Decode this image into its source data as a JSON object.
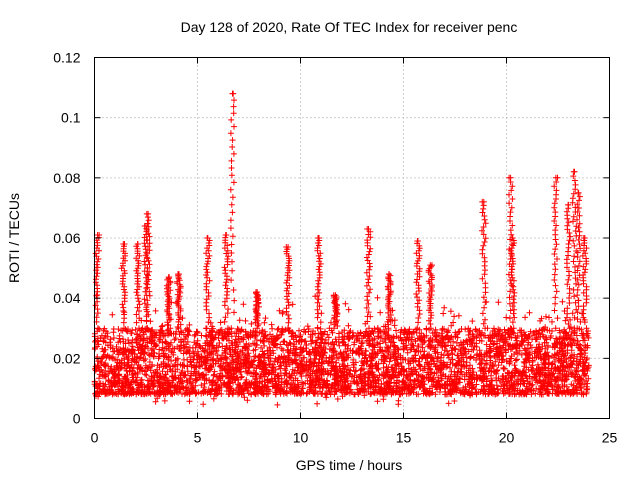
{
  "chart_data": {
    "type": "scatter",
    "title": "Day 128 of 2020, Rate Of TEC Index for receiver penc",
    "xlabel": "GPS time / hours",
    "ylabel": "ROTI / TECUs",
    "xlim": [
      0,
      25
    ],
    "ylim": [
      0,
      0.12
    ],
    "xticks": [
      "0",
      "5",
      "10",
      "15",
      "20",
      "25"
    ],
    "yticks": [
      "0",
      "0.02",
      "0.04",
      "0.06",
      "0.08",
      "0.1",
      "0.12"
    ],
    "grid": true,
    "marker": "+",
    "color": "#ff0000",
    "x_range_of_points": [
      0,
      24
    ],
    "baseline_roti_range": [
      0.008,
      0.03
    ],
    "peaks": [
      {
        "x": 0.15,
        "y": 0.061
      },
      {
        "x": 1.4,
        "y": 0.058
      },
      {
        "x": 2.1,
        "y": 0.058
      },
      {
        "x": 2.5,
        "y": 0.064
      },
      {
        "x": 2.6,
        "y": 0.068
      },
      {
        "x": 3.6,
        "y": 0.047
      },
      {
        "x": 4.1,
        "y": 0.048
      },
      {
        "x": 5.5,
        "y": 0.06
      },
      {
        "x": 6.4,
        "y": 0.061
      },
      {
        "x": 6.7,
        "y": 0.108
      },
      {
        "x": 7.9,
        "y": 0.042
      },
      {
        "x": 9.4,
        "y": 0.057
      },
      {
        "x": 10.9,
        "y": 0.06
      },
      {
        "x": 11.7,
        "y": 0.041
      },
      {
        "x": 13.3,
        "y": 0.063
      },
      {
        "x": 14.3,
        "y": 0.048
      },
      {
        "x": 15.7,
        "y": 0.059
      },
      {
        "x": 16.3,
        "y": 0.051
      },
      {
        "x": 18.9,
        "y": 0.072
      },
      {
        "x": 20.2,
        "y": 0.08
      },
      {
        "x": 20.3,
        "y": 0.06
      },
      {
        "x": 22.4,
        "y": 0.08
      },
      {
        "x": 23.0,
        "y": 0.071
      },
      {
        "x": 23.3,
        "y": 0.082
      },
      {
        "x": 23.5,
        "y": 0.075
      },
      {
        "x": 23.8,
        "y": 0.06
      }
    ]
  }
}
